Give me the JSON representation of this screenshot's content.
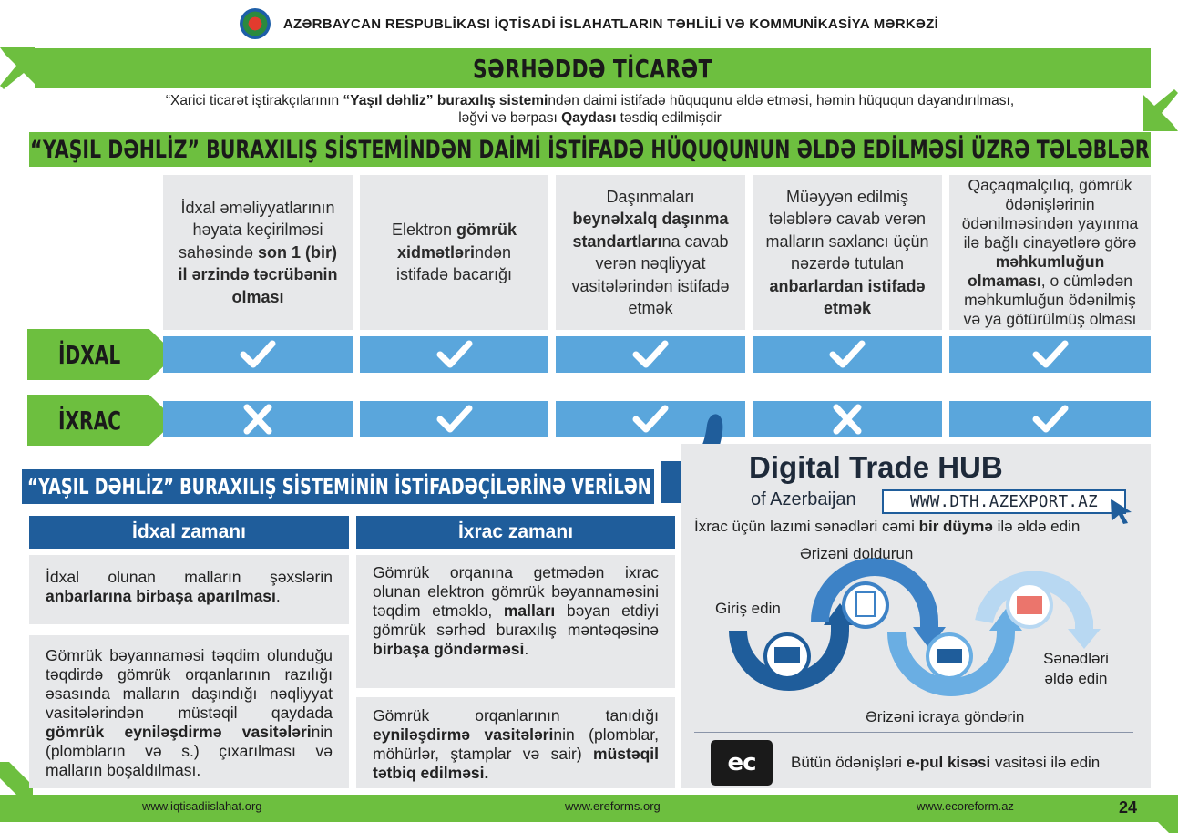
{
  "header": {
    "org_title": "AZƏRBAYCAN RESPUBLİKASI İQTİSADİ İSLAHATLARIN TƏHLİLİ VƏ KOMMUNİKASİYA MƏRKƏZİ"
  },
  "title": "SƏRHƏDDƏ TİCARƏT",
  "subtitle": {
    "p1": "“Xarici ticarət iştirakçılarının ",
    "b1": "“Yaşıl dəhliz” buraxılış sistemi",
    "p2": "ndən daimi istifadə hüququnu əldə etməsi, həmin hüququn dayandırılması,",
    "p3": "ləğvi və bərpası ",
    "b2": "Qaydası",
    "p4": " təsdiq edilmişdir"
  },
  "requirements_heading": "“YAŞIL DƏHLİZ” BURAXILIŞ SİSTEMİNDƏN DAİMİ İSTİFADƏ HÜQUQUNUN ƏLDƏ EDİLMƏSİ ÜZRƏ TƏLƏBLƏR",
  "requirements": [
    {
      "t1": "İdxal əməliyyatlarının həyata keçirilməsi sahəsində ",
      "b1": "son 1 (bir) il ərzində təcrübənin olması",
      "t2": ""
    },
    {
      "t1": "Elektron ",
      "b1": "gömrük xidmətləri",
      "t2": "ndən istifadə bacarığı"
    },
    {
      "t1": "Daşınmaları ",
      "b1": "beynəlxalq daşınma standartları",
      "t2": "na cavab verən nəqliyyat vasitələrindən istifadə etmək"
    },
    {
      "t1": "Müəyyən edilmiş tələblərə cavab verən malların saxlancı üçün nəzərdə tutulan ",
      "b1": "anbarlardan istifadə etmək",
      "t2": ""
    },
    {
      "t1": "Qaçaqmalçılıq, gömrük ödənişlərinin ödənilməsindən yayınma ilə bağlı cinayətlərə görə ",
      "b1": "məhkumluğun olmaması",
      "t2": ", o cümlədən məhkumluğun ödənilmiş və ya götürülmüş olması"
    }
  ],
  "rows": [
    {
      "label": "İDXAL",
      "marks": [
        "check-icon",
        "check-icon",
        "check-icon",
        "check-icon",
        "check-icon"
      ]
    },
    {
      "label": "İXRAC",
      "marks": [
        "cross-icon",
        "check-icon",
        "check-icon",
        "cross-icon",
        "check-icon"
      ]
    }
  ],
  "advantages": {
    "heading": "“YAŞIL DƏHLİZ” BURAXILIŞ SİSTEMİNİN İSTİFADƏÇİLƏRİNƏ VERİLƏN ÜSTÜNLÜKLƏR",
    "import_head": "İdxal zamanı",
    "export_head": "İxrac zamanı",
    "import_1": {
      "t1": "İdxal olunan malların şəxslərin ",
      "b1": "anbarlarına birbaşa aparılması",
      "t2": "."
    },
    "import_2": {
      "t1": "Gömrük bəyannaməsi təqdim olunduğu təqdirdə gömrük orqanlarının razılığı əsasında malların daşındığı nəqliyyat vasitələrindən müstəqil qaydada ",
      "b1": "gömrük eyniləşdirmə vasitələri",
      "t2": "nin (plombların və s.) çıxarılması və malların boşaldılması."
    },
    "export_1": {
      "t1": "Gömrük orqanına getmədən ixrac olunan elektron gömrük bəyannaməsini təqdim etməklə, ",
      "b1": "malları",
      "t2": " bəyan etdiyi gömrük sərhəd buraxılış məntəqəsinə ",
      "b2": "birbaşa göndərməsi",
      "t3": "."
    },
    "export_2": {
      "t1": "Gömrük orqanlarının tanıdığı ",
      "b1": "eyniləşdirmə vasitələri",
      "t2": "nin (plomblar, möhürlər, ştamplar və sair) ",
      "b2": "müstəqil tətbiq edilməsi."
    }
  },
  "hub": {
    "title": "Digital Trade HUB",
    "subtitle": "of Azerbaijan",
    "url": "WWW.DTH.AZEXPORT.AZ",
    "line1_t1": "İxrac üçün lazımi sənədləri cəmi ",
    "line1_b1": "bir düymə",
    "line1_t2": " ilə əldə edin",
    "step_login": "Giriş edin",
    "step_fill": "Ərizəni doldurun",
    "step_send": "Ərizəni icraya göndərin",
    "step_get": "Sənədləri əldə edin",
    "pay_t1": "Bütün ödənişləri ",
    "pay_b1": "e-pul kisəsi",
    "pay_t2": " vasitəsi ilə edin",
    "wallet_text": "ec"
  },
  "footer": {
    "link1": "www.iqtisadiislahat.org",
    "link2": "www.ereforms.org",
    "link3": "www.ecoreform.az",
    "page": "24"
  },
  "colors": {
    "green": "#6dbf3f",
    "blue_dark": "#1f5d9b",
    "blue_light": "#5aa6dc",
    "gray_box": "#e7e8ea"
  }
}
